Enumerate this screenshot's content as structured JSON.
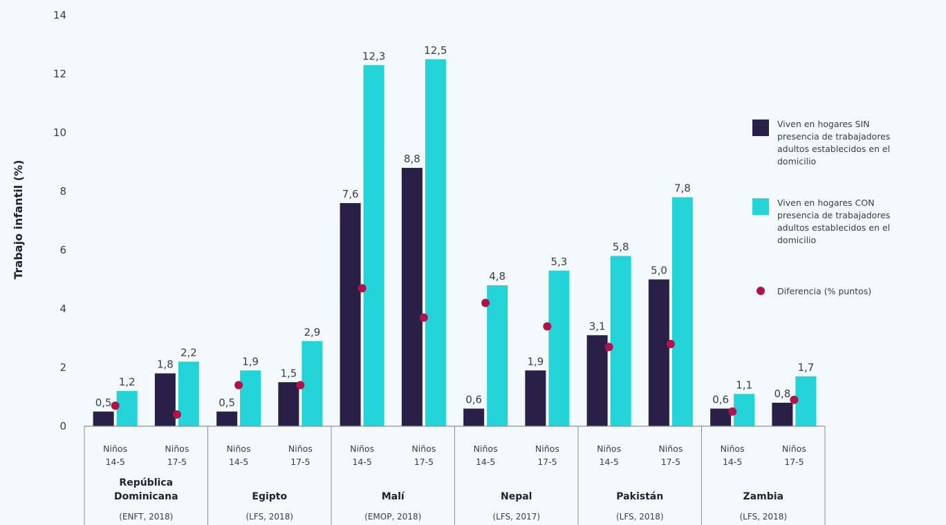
{
  "colors": {
    "sin": "#2a1f47",
    "con": "#22d3d8",
    "diff": "#b0124a",
    "axis": "#8c8c99"
  },
  "chart_data": {
    "type": "bar",
    "ylabel": "Trabajo infantil (%)",
    "ylim": [
      0,
      14
    ],
    "yticks": [
      0,
      2,
      4,
      6,
      8,
      10,
      12,
      14
    ],
    "groups": [
      {
        "country": "República Dominicana",
        "source": "(ENFT, 2018)",
        "categories": [
          {
            "label1": "Niños",
            "label2": "14-5",
            "sin": 0.5,
            "con": 1.2,
            "sin_label": "0,5",
            "con_label": "1,2",
            "diff": 0.7
          },
          {
            "label1": "Niños",
            "label2": "17-5",
            "sin": 1.8,
            "con": 2.2,
            "sin_label": "1,8",
            "con_label": "2,2",
            "diff": 0.4
          }
        ]
      },
      {
        "country": "Egipto",
        "source": "(LFS, 2018)",
        "categories": [
          {
            "label1": "Niños",
            "label2": "14-5",
            "sin": 0.5,
            "con": 1.9,
            "sin_label": "0,5",
            "con_label": "1,9",
            "diff": 1.4
          },
          {
            "label1": "Niños",
            "label2": "17-5",
            "sin": 1.5,
            "con": 2.9,
            "sin_label": "1,5",
            "con_label": "2,9",
            "diff": 1.4
          }
        ]
      },
      {
        "country": "Malí",
        "source": "(EMOP, 2018)",
        "categories": [
          {
            "label1": "Niños",
            "label2": "14-5",
            "sin": 7.6,
            "con": 12.3,
            "sin_label": "7,6",
            "con_label": "12,3",
            "diff": 4.7
          },
          {
            "label1": "Niños",
            "label2": "17-5",
            "sin": 8.8,
            "con": 12.5,
            "sin_label": "8,8",
            "con_label": "12,5",
            "diff": 3.7
          }
        ]
      },
      {
        "country": "Nepal",
        "source": "(LFS, 2017)",
        "categories": [
          {
            "label1": "Niños",
            "label2": "14-5",
            "sin": 0.6,
            "con": 4.8,
            "sin_label": "0,6",
            "con_label": "4,8",
            "diff": 4.2
          },
          {
            "label1": "Niños",
            "label2": "17-5",
            "sin": 1.9,
            "con": 5.3,
            "sin_label": "1,9",
            "con_label": "5,3",
            "diff": 3.4
          }
        ]
      },
      {
        "country": "Pakistán",
        "source": "(LFS, 2018)",
        "categories": [
          {
            "label1": "Niños",
            "label2": "14-5",
            "sin": 3.1,
            "con": 5.8,
            "sin_label": "3,1",
            "con_label": "5,8",
            "diff": 2.7
          },
          {
            "label1": "Niños",
            "label2": "17-5",
            "sin": 5.0,
            "con": 7.8,
            "sin_label": "5,0",
            "con_label": "7,8",
            "diff": 2.8
          }
        ]
      },
      {
        "country": "Zambia",
        "source": "(LFS, 2018)",
        "categories": [
          {
            "label1": "Niños",
            "label2": "14-5",
            "sin": 0.6,
            "con": 1.1,
            "sin_label": "0,6",
            "con_label": "1,1",
            "diff": 0.5
          },
          {
            "label1": "Niños",
            "label2": "17-5",
            "sin": 0.8,
            "con": 1.7,
            "sin_label": "0,8",
            "con_label": "1,7",
            "diff": 0.9
          }
        ]
      }
    ],
    "legend": [
      {
        "key": "sin",
        "marker": "square",
        "lines": [
          "Viven en hogares SIN",
          "presencia de trabajadores",
          "adultos establecidos en el",
          "domicilio"
        ]
      },
      {
        "key": "con",
        "marker": "square",
        "lines": [
          "Viven en hogares CON",
          "presencia de trabajadores",
          "adultos establecidos en el",
          "domicilio"
        ]
      },
      {
        "key": "diff",
        "marker": "dot",
        "lines": [
          "Diferencia (% puntos)"
        ]
      }
    ],
    "legend_position": "right"
  }
}
